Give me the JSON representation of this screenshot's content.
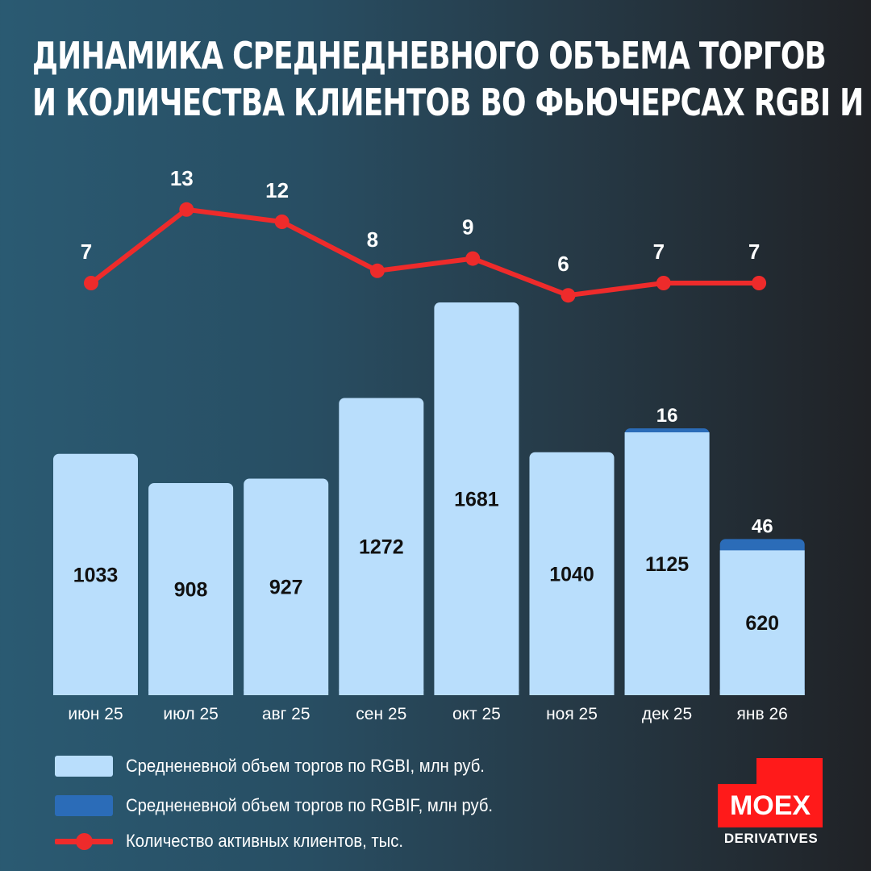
{
  "title": {
    "line1": "ДИНАМИКА СРЕДНЕДНЕВНОГО ОБЪЕМА ТОРГОВ",
    "line2": "И КОЛИЧЕСТВА КЛИЕНТОВ ВО ФЬЮЧЕРСАХ RGBI И RGBIF"
  },
  "colors": {
    "rgbi_bar": "#b9defc",
    "rgbif_bar": "#2b6cb8",
    "clients_line": "#ee2b2b",
    "bar_label": "#111111",
    "text": "#ffffff"
  },
  "legend": {
    "items": [
      {
        "label": "Средненевной объем торгов по RGBI, млн руб.",
        "type": "rgbi"
      },
      {
        "label": "Средненевной объем торгов по RGBIF, млн руб.",
        "type": "rgbif"
      },
      {
        "label": "Количество активных клиентов, тыс.",
        "type": "line"
      }
    ]
  },
  "logo": {
    "brand": "MOEX",
    "subtitle": "DERIVATIVES"
  },
  "chart_data": {
    "type": "bar",
    "title": "ДИНАМИКА СРЕДНЕДНЕВНОГО ОБЪЕМА ТОРГОВ И КОЛИЧЕСТВА КЛИЕНТОВ ВО ФЬЮЧЕРСАХ RGBI И RGBIF",
    "xlabel": "",
    "ylabel": "",
    "categories": [
      "июн 25",
      "июл 25",
      "авг 25",
      "сен 25",
      "окт 25",
      "ноя 25",
      "дек 25",
      "янв 26"
    ],
    "series": [
      {
        "name": "Средненевной объем торгов по RGBI, млн руб.",
        "type": "bar",
        "stack": "volume",
        "values": [
          1033,
          908,
          927,
          1272,
          1681,
          1040,
          1125,
          620
        ]
      },
      {
        "name": "Средненевной объем торгов по RGBIF, млн руб.",
        "type": "bar",
        "stack": "volume",
        "values": [
          0,
          0,
          0,
          0,
          0,
          0,
          16,
          46
        ]
      },
      {
        "name": "Количество активных клиентов, тыс.",
        "type": "line",
        "values": [
          7,
          13,
          12,
          8,
          9,
          6,
          7,
          7
        ]
      }
    ],
    "bar_labels": [
      "1033",
      "908",
      "927",
      "1272",
      "1681",
      "1040",
      "1125",
      "620"
    ],
    "stack_labels": [
      "",
      "",
      "",
      "",
      "",
      "",
      "16",
      "46"
    ],
    "line_labels": [
      "7",
      "13",
      "12",
      "8",
      "9",
      "6",
      "7",
      "7"
    ],
    "grid": false,
    "legend_position": "bottom-left"
  }
}
